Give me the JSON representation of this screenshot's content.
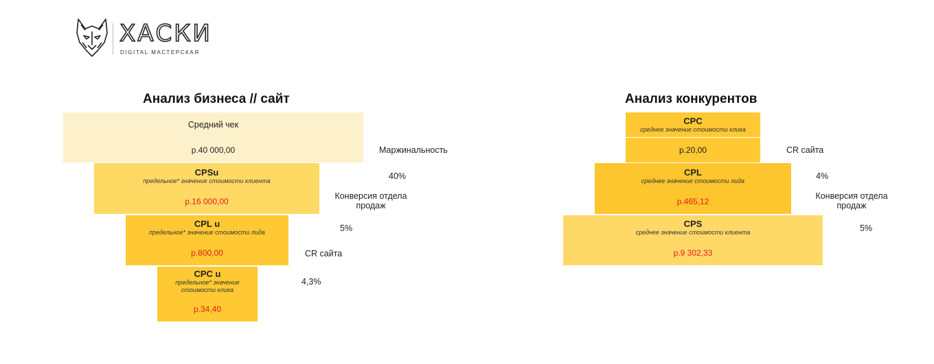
{
  "logo": {
    "brand": "ХАСКИ",
    "tagline": "DIGITAL МАСТЕРСКАЯ",
    "icon": "wolf-icon"
  },
  "left": {
    "title": "Анализ бизнеса // сайт",
    "avg_check_label": "Средний чек",
    "avg_check_value": "р.40 000,00",
    "cpsu_label": "CPSu",
    "cpsu_sub": "предельное* значение стоимости клиента",
    "cpsu_value": "р.16 000,00",
    "cplu_label": "CPL u",
    "cplu_sub": "предельное* значение стоимости лида",
    "cplu_value": "р.800,00",
    "cpcu_label": "CPC u",
    "cpcu_sub": "предельное* значение стоимости клика",
    "cpcu_value": "р.34,40",
    "margin_label": "Маржинальность",
    "margin_value": "40%",
    "sales_conv_label": "Конверсия отдела продаж",
    "sales_conv_value": "5%",
    "cr_label": "CR сайта",
    "cr_value": "4,3%"
  },
  "right": {
    "title": "Анализ конкурентов",
    "cpc_label": "CPC",
    "cpc_sub": "среднее значение стоимости клика",
    "cpc_value": "р.20,00",
    "cpl_label": "CPL",
    "cpl_sub": "среднее значение стоимости лида",
    "cpl_value": "р.465,12",
    "cps_label": "CPS",
    "cps_sub": "среднее значение стоимости клиента",
    "cps_value": "р.9 302,33",
    "cr_label": "CR сайта",
    "cr_value": "4%",
    "sales_conv_label": "Конверсия отдела продаж",
    "sales_conv_value": "5%"
  },
  "colors": {
    "cream": "#fdf1cc",
    "yellow": "#fed964",
    "gold": "#fec933",
    "accent_red": "#e31b1b"
  }
}
